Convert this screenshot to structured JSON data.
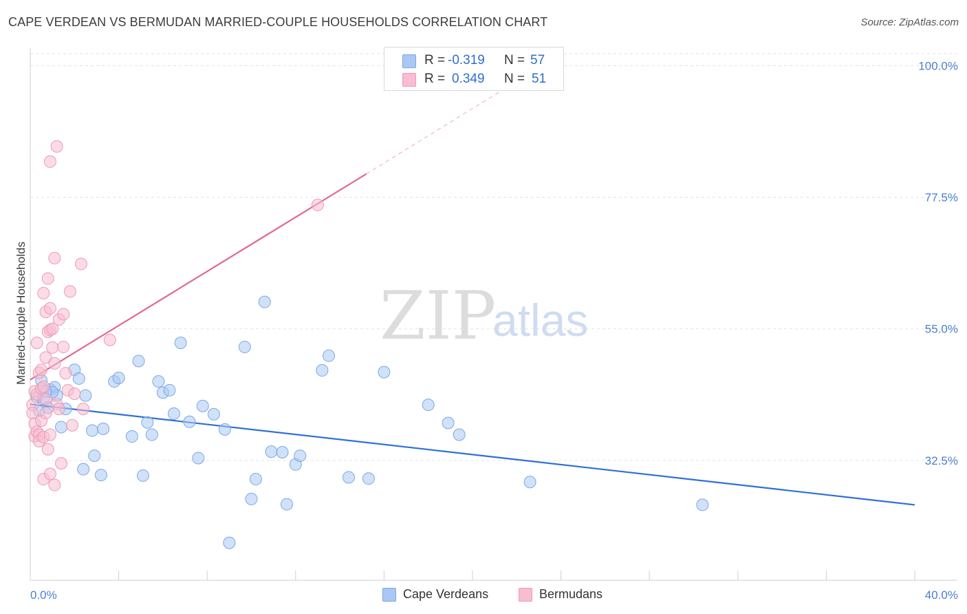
{
  "header": {
    "title": "CAPE VERDEAN VS BERMUDAN MARRIED-COUPLE HOUSEHOLDS CORRELATION CHART",
    "source": "Source: ZipAtlas.com"
  },
  "watermark": {
    "zip": "ZIP",
    "atlas": "atlas"
  },
  "legend": {
    "rows": [
      {
        "r_label": "R =",
        "r_value": "-0.319",
        "n_label": "N =",
        "n_value": "57",
        "color": "#a9c8f3"
      },
      {
        "r_label": "R =",
        "r_value": "0.349",
        "n_label": "N =",
        "n_value": "51",
        "color": "#f8bdd0"
      }
    ]
  },
  "bottom_legend": {
    "items": [
      {
        "label": "Cape Verdeans",
        "color": "#a9c8f3"
      },
      {
        "label": "Bermudans",
        "color": "#f8bdd0"
      }
    ]
  },
  "chart_data": {
    "type": "scatter",
    "title": "CAPE VERDEAN VS BERMUDAN MARRIED-COUPLE HOUSEHOLDS CORRELATION CHART",
    "xlabel": "",
    "ylabel": "Married-couple Households",
    "xlim": [
      0,
      40
    ],
    "ylim": [
      12,
      103
    ],
    "x_tick_labels": [
      {
        "value": 0,
        "label": "0.0%"
      },
      {
        "value": 40,
        "label": "40.0%"
      }
    ],
    "y_tick_labels": [
      {
        "value": 32.5,
        "label": "32.5%"
      },
      {
        "value": 55.0,
        "label": "55.0%"
      },
      {
        "value": 77.5,
        "label": "77.5%"
      },
      {
        "value": 100.0,
        "label": "100.0%"
      }
    ],
    "x_minor_ticks": [
      0,
      4,
      8,
      12,
      16,
      20,
      24,
      28,
      32,
      36,
      40
    ],
    "grid": true,
    "legend_position": "top-center",
    "series": [
      {
        "name": "Cape Verdeans",
        "color": "#a9c8f3",
        "stroke": "#7aa8e6",
        "trend": {
          "x0": 0,
          "y0": 42.1,
          "x1": 40,
          "y1": 24.9,
          "color": "#2f6fd6"
        },
        "points": [
          [
            0.3,
            43.3
          ],
          [
            0.4,
            41.0
          ],
          [
            0.5,
            46.2
          ],
          [
            0.6,
            43.0
          ],
          [
            0.8,
            41.5
          ],
          [
            0.9,
            44.6
          ],
          [
            1.1,
            45.0
          ],
          [
            1.2,
            43.6
          ],
          [
            1.4,
            38.2
          ],
          [
            1.6,
            41.3
          ],
          [
            2.0,
            48.0
          ],
          [
            2.2,
            46.5
          ],
          [
            2.4,
            31.0
          ],
          [
            2.5,
            43.6
          ],
          [
            2.8,
            37.6
          ],
          [
            2.9,
            33.3
          ],
          [
            3.2,
            30.0
          ],
          [
            3.3,
            37.9
          ],
          [
            3.8,
            46.0
          ],
          [
            4.0,
            46.6
          ],
          [
            4.6,
            36.6
          ],
          [
            4.9,
            49.5
          ],
          [
            5.1,
            29.9
          ],
          [
            5.3,
            39.0
          ],
          [
            5.5,
            36.9
          ],
          [
            5.8,
            46.0
          ],
          [
            6.0,
            44.1
          ],
          [
            6.3,
            44.5
          ],
          [
            6.5,
            40.5
          ],
          [
            6.8,
            52.6
          ],
          [
            7.2,
            39.1
          ],
          [
            7.6,
            32.9
          ],
          [
            7.8,
            41.8
          ],
          [
            8.3,
            40.4
          ],
          [
            8.8,
            37.8
          ],
          [
            9.0,
            18.4
          ],
          [
            9.7,
            51.9
          ],
          [
            10.0,
            25.9
          ],
          [
            10.2,
            29.3
          ],
          [
            10.6,
            59.6
          ],
          [
            10.9,
            34.0
          ],
          [
            11.4,
            33.9
          ],
          [
            11.6,
            25.0
          ],
          [
            12.0,
            31.8
          ],
          [
            12.2,
            33.3
          ],
          [
            13.2,
            47.9
          ],
          [
            13.5,
            50.4
          ],
          [
            14.4,
            29.6
          ],
          [
            15.3,
            29.4
          ],
          [
            16.0,
            47.6
          ],
          [
            18.0,
            42.0
          ],
          [
            18.9,
            38.9
          ],
          [
            19.4,
            36.9
          ],
          [
            22.6,
            28.8
          ],
          [
            30.4,
            24.9
          ],
          [
            1.0,
            44.2
          ],
          [
            0.7,
            44.3
          ]
        ]
      },
      {
        "name": "Bermudans",
        "color": "#f8bdd0",
        "stroke": "#ec9ab5",
        "trend": {
          "x0": 0,
          "y0": 46.3,
          "x1": 15.2,
          "y1": 81.5,
          "x_ext": 22.5,
          "y_ext": 98.5,
          "color": "#e3668f"
        },
        "points": [
          [
            0.1,
            42.0
          ],
          [
            0.1,
            40.6
          ],
          [
            0.2,
            44.3
          ],
          [
            0.2,
            36.6
          ],
          [
            0.2,
            38.8
          ],
          [
            0.3,
            52.6
          ],
          [
            0.3,
            37.4
          ],
          [
            0.3,
            43.8
          ],
          [
            0.4,
            47.5
          ],
          [
            0.4,
            36.9
          ],
          [
            0.4,
            35.8
          ],
          [
            0.5,
            39.3
          ],
          [
            0.5,
            48.0
          ],
          [
            0.5,
            44.8
          ],
          [
            0.6,
            61.1
          ],
          [
            0.6,
            45.1
          ],
          [
            0.6,
            36.5
          ],
          [
            0.6,
            29.3
          ],
          [
            0.7,
            57.9
          ],
          [
            0.7,
            50.1
          ],
          [
            0.7,
            43.0
          ],
          [
            0.7,
            40.6
          ],
          [
            0.8,
            63.6
          ],
          [
            0.8,
            54.5
          ],
          [
            0.8,
            34.4
          ],
          [
            0.9,
            83.6
          ],
          [
            0.9,
            58.5
          ],
          [
            0.9,
            54.8
          ],
          [
            0.9,
            30.2
          ],
          [
            0.9,
            36.9
          ],
          [
            1.0,
            55.0
          ],
          [
            1.0,
            51.8
          ],
          [
            1.1,
            49.1
          ],
          [
            1.1,
            28.3
          ],
          [
            1.1,
            67.1
          ],
          [
            1.2,
            86.2
          ],
          [
            1.2,
            42.1
          ],
          [
            1.3,
            56.6
          ],
          [
            1.3,
            41.3
          ],
          [
            1.4,
            32.0
          ],
          [
            1.5,
            57.5
          ],
          [
            1.5,
            51.9
          ],
          [
            1.6,
            47.4
          ],
          [
            1.7,
            44.5
          ],
          [
            1.8,
            61.4
          ],
          [
            1.9,
            38.5
          ],
          [
            2.0,
            43.9
          ],
          [
            2.3,
            66.1
          ],
          [
            2.4,
            41.3
          ],
          [
            3.6,
            53.1
          ],
          [
            13.0,
            76.2
          ]
        ]
      }
    ]
  }
}
